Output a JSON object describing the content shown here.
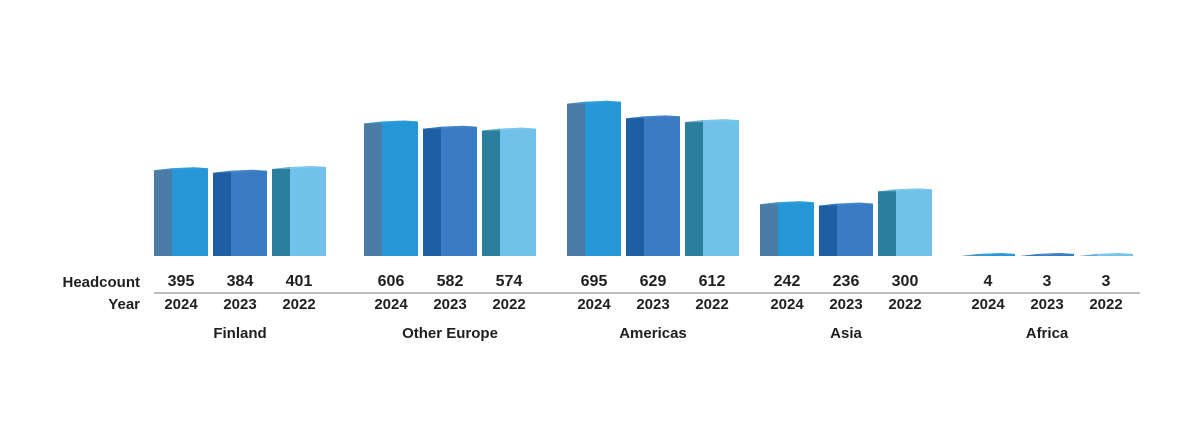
{
  "chart_data": {
    "type": "bar",
    "row_labels": {
      "value": "Headcount",
      "year": "Year"
    },
    "groups": [
      {
        "name": "Finland",
        "bars": [
          {
            "year": "2024",
            "value": 395
          },
          {
            "year": "2023",
            "value": 384
          },
          {
            "year": "2022",
            "value": 401
          }
        ]
      },
      {
        "name": "Other Europe",
        "bars": [
          {
            "year": "2024",
            "value": 606
          },
          {
            "year": "2023",
            "value": 582
          },
          {
            "year": "2022",
            "value": 574
          }
        ]
      },
      {
        "name": "Americas",
        "bars": [
          {
            "year": "2024",
            "value": 695
          },
          {
            "year": "2023",
            "value": 629
          },
          {
            "year": "2022",
            "value": 612
          }
        ]
      },
      {
        "name": "Asia",
        "bars": [
          {
            "year": "2024",
            "value": 242
          },
          {
            "year": "2023",
            "value": 236
          },
          {
            "year": "2022",
            "value": 300
          }
        ]
      },
      {
        "name": "Africa",
        "bars": [
          {
            "year": "2024",
            "value": 4
          },
          {
            "year": "2023",
            "value": 3
          },
          {
            "year": "2022",
            "value": 3
          }
        ]
      }
    ],
    "ylim": [
      0,
      700
    ],
    "grid": false,
    "colors": {
      "2024": {
        "front": "#2597d6",
        "side": "#4a7ca6",
        "top": "#3aa3e0"
      },
      "2023": {
        "front": "#3a7cc4",
        "side": "#1e5fa3",
        "top": "#4a8ad0"
      },
      "2022": {
        "front": "#72c1ea",
        "side": "#2c7f9c",
        "top": "#86cdef"
      },
      "separator": "#a8a8a8",
      "text": "#1f1f1f"
    }
  }
}
